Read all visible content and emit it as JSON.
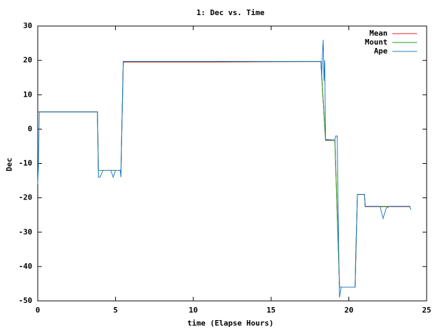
{
  "chart_data": {
    "type": "line",
    "title": "1: Dec vs. Time",
    "x_label": "time (Elapse Hours)",
    "y_label": "Dec",
    "xlim": [
      0,
      25
    ],
    "xticks": [
      0,
      5,
      10,
      15,
      20,
      25
    ],
    "ylim": [
      -50,
      30
    ],
    "yticks": [
      -50,
      -40,
      -30,
      -20,
      -10,
      0,
      10,
      20,
      30
    ],
    "legend": "top-right",
    "series": [
      {
        "name": "Mean",
        "color": "#e41a1c",
        "x": [
          0,
          0.1,
          3.84,
          3.9,
          5.35,
          5.5,
          11.0,
          18.2,
          18.5,
          19.1,
          19.4,
          20.4,
          20.55,
          21.0,
          21.05,
          23.95
        ],
        "values": [
          5,
          5,
          5,
          -12,
          -12,
          19.5,
          19.5,
          19.7,
          -3.3,
          -3.3,
          -46,
          -46,
          -19,
          -19,
          -22.6,
          -22.6
        ]
      },
      {
        "name": "Mount",
        "color": "#1a9a1a",
        "x": [
          0,
          0.1,
          3.84,
          3.9,
          5.35,
          5.5,
          18.2,
          18.5,
          19.1,
          19.4,
          20.4,
          20.55,
          21.0,
          21.05,
          23.95
        ],
        "values": [
          5,
          5,
          5,
          -12,
          -12,
          19.7,
          19.7,
          -3.2,
          -3.2,
          -46,
          -46,
          -19,
          -19,
          -22.5,
          -22.5
        ]
      },
      {
        "name": "Ape",
        "color": "#1f78c8",
        "x": [
          0,
          0.05,
          0.1,
          3.84,
          3.9,
          4.0,
          4.2,
          4.7,
          4.85,
          5.0,
          5.3,
          5.35,
          5.45,
          5.5,
          18.2,
          18.25,
          18.3,
          18.35,
          18.4,
          18.45,
          18.5,
          19.1,
          19.15,
          19.25,
          19.35,
          19.4,
          19.5,
          20.4,
          20.45,
          20.55,
          21.0,
          21.05,
          22.0,
          22.2,
          22.4,
          22.6,
          23.9,
          24.0
        ],
        "values": [
          -16,
          -10,
          5,
          5,
          -14,
          -14,
          -12,
          -12,
          -14,
          -12,
          -12,
          -14,
          11,
          19.7,
          19.7,
          15,
          22,
          26,
          14,
          20,
          -3,
          -3.2,
          -2,
          -2,
          -36,
          -49,
          -46,
          -46,
          -35,
          -19,
          -19,
          -22.5,
          -22.5,
          -26,
          -23,
          -22.5,
          -22.5,
          -23.5
        ]
      }
    ]
  }
}
